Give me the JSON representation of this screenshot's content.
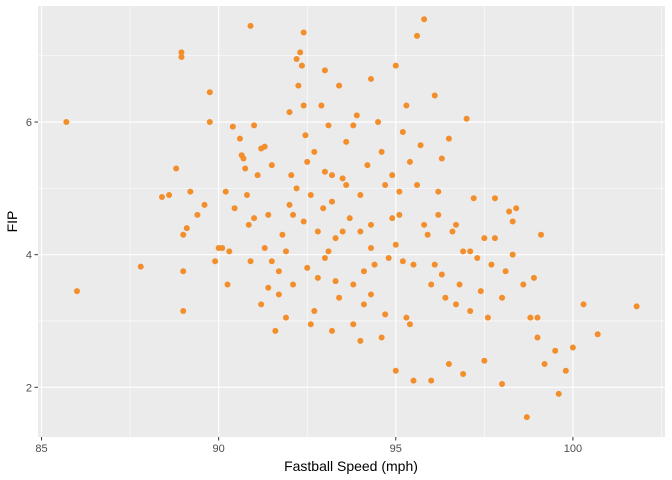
{
  "chart_data": {
    "type": "scatter",
    "xlabel": "Fastball Speed (mph)",
    "ylabel": "FIP",
    "xlim": [
      84.9,
      102.6
    ],
    "ylim": [
      1.25,
      7.75
    ],
    "x_ticks": [
      85,
      90,
      95,
      100
    ],
    "y_ticks": [
      2,
      4,
      6
    ],
    "grid": true,
    "legend": "none",
    "colors": {
      "panel": "#EBEBEB",
      "grid_major": "#FFFFFF",
      "point": "#F28E2B",
      "text": "#4D4D4D",
      "tick": "#333333"
    },
    "points": [
      [
        85.7,
        6.0
      ],
      [
        86.0,
        3.45
      ],
      [
        87.8,
        3.82
      ],
      [
        88.4,
        4.87
      ],
      [
        88.6,
        4.9
      ],
      [
        88.8,
        5.3
      ],
      [
        88.95,
        7.05
      ],
      [
        88.95,
        6.98
      ],
      [
        89.0,
        4.3
      ],
      [
        89.0,
        3.75
      ],
      [
        89.0,
        3.15
      ],
      [
        89.1,
        4.4
      ],
      [
        89.2,
        4.95
      ],
      [
        89.4,
        4.6
      ],
      [
        89.6,
        4.75
      ],
      [
        89.75,
        6.45
      ],
      [
        89.75,
        6.0
      ],
      [
        90.0,
        4.1
      ],
      [
        90.1,
        4.1
      ],
      [
        90.2,
        4.95
      ],
      [
        90.25,
        3.55
      ],
      [
        90.4,
        5.93
      ],
      [
        90.45,
        4.7
      ],
      [
        90.6,
        5.75
      ],
      [
        90.65,
        5.5
      ],
      [
        90.7,
        5.45
      ],
      [
        90.75,
        5.3
      ],
      [
        90.8,
        4.9
      ],
      [
        90.85,
        4.45
      ],
      [
        90.9,
        3.9
      ],
      [
        90.9,
        7.45
      ],
      [
        91.0,
        5.95
      ],
      [
        91.0,
        4.55
      ],
      [
        91.1,
        5.2
      ],
      [
        91.2,
        5.6
      ],
      [
        91.3,
        5.63
      ],
      [
        91.3,
        4.1
      ],
      [
        91.4,
        3.5
      ],
      [
        91.5,
        5.35
      ],
      [
        91.5,
        3.9
      ],
      [
        91.6,
        2.85
      ],
      [
        91.7,
        3.75
      ],
      [
        91.8,
        4.3
      ],
      [
        91.9,
        4.05
      ],
      [
        91.9,
        3.05
      ],
      [
        92.0,
        6.15
      ],
      [
        92.05,
        5.2
      ],
      [
        92.1,
        4.6
      ],
      [
        92.2,
        6.95
      ],
      [
        92.25,
        6.55
      ],
      [
        92.3,
        7.05
      ],
      [
        92.35,
        6.85
      ],
      [
        92.4,
        7.35
      ],
      [
        92.4,
        6.25
      ],
      [
        92.45,
        5.8
      ],
      [
        92.5,
        5.4
      ],
      [
        92.5,
        3.8
      ],
      [
        92.6,
        4.9
      ],
      [
        92.7,
        3.15
      ],
      [
        92.8,
        4.35
      ],
      [
        92.9,
        6.25
      ],
      [
        92.95,
        4.7
      ],
      [
        93.0,
        6.78
      ],
      [
        93.0,
        3.95
      ],
      [
        93.1,
        5.95
      ],
      [
        93.2,
        5.2
      ],
      [
        93.2,
        2.85
      ],
      [
        93.3,
        4.25
      ],
      [
        93.4,
        6.55
      ],
      [
        93.4,
        3.35
      ],
      [
        93.5,
        5.15
      ],
      [
        93.6,
        5.05
      ],
      [
        93.7,
        4.55
      ],
      [
        93.8,
        5.95
      ],
      [
        93.8,
        3.55
      ],
      [
        93.9,
        6.1
      ],
      [
        94.0,
        4.35
      ],
      [
        94.1,
        3.25
      ],
      [
        94.2,
        5.35
      ],
      [
        94.3,
        6.65
      ],
      [
        94.3,
        4.1
      ],
      [
        94.4,
        3.85
      ],
      [
        94.5,
        6.0
      ],
      [
        94.6,
        2.75
      ],
      [
        94.7,
        5.05
      ],
      [
        94.8,
        3.95
      ],
      [
        94.9,
        4.55
      ],
      [
        95.0,
        6.85
      ],
      [
        95.0,
        4.15
      ],
      [
        95.1,
        4.95
      ],
      [
        95.2,
        5.85
      ],
      [
        95.3,
        6.25
      ],
      [
        95.4,
        2.95
      ],
      [
        95.5,
        3.85
      ],
      [
        95.6,
        7.3
      ],
      [
        95.7,
        5.65
      ],
      [
        95.8,
        4.45
      ],
      [
        95.9,
        4.3
      ],
      [
        96.0,
        3.55
      ],
      [
        96.1,
        6.4
      ],
      [
        96.2,
        4.95
      ],
      [
        96.3,
        5.45
      ],
      [
        96.4,
        3.35
      ],
      [
        96.5,
        5.75
      ],
      [
        96.6,
        4.35
      ],
      [
        96.7,
        3.25
      ],
      [
        96.8,
        3.55
      ],
      [
        96.9,
        4.05
      ],
      [
        97.0,
        6.05
      ],
      [
        97.1,
        3.15
      ],
      [
        97.2,
        4.85
      ],
      [
        97.3,
        3.95
      ],
      [
        97.4,
        3.45
      ],
      [
        97.5,
        4.25
      ],
      [
        97.6,
        3.05
      ],
      [
        97.7,
        3.85
      ],
      [
        97.8,
        4.85
      ],
      [
        98.0,
        3.35
      ],
      [
        98.1,
        3.75
      ],
      [
        98.2,
        4.65
      ],
      [
        98.3,
        4.5
      ],
      [
        98.4,
        4.7
      ],
      [
        98.6,
        3.55
      ],
      [
        98.8,
        3.05
      ],
      [
        98.9,
        3.65
      ],
      [
        99.0,
        2.75
      ],
      [
        99.1,
        4.3
      ],
      [
        99.2,
        2.35
      ],
      [
        99.5,
        2.55
      ],
      [
        99.6,
        1.9
      ],
      [
        99.8,
        2.25
      ],
      [
        100.0,
        2.6
      ],
      [
        100.3,
        3.25
      ],
      [
        100.7,
        2.8
      ],
      [
        101.8,
        3.22
      ],
      [
        98.7,
        1.55
      ],
      [
        99.0,
        3.05
      ],
      [
        96.0,
        2.1
      ],
      [
        95.0,
        2.25
      ],
      [
        94.0,
        2.7
      ],
      [
        96.5,
        2.35
      ],
      [
        97.5,
        2.4
      ],
      [
        98.0,
        2.05
      ],
      [
        93.8,
        2.95
      ],
      [
        95.5,
        2.1
      ],
      [
        96.9,
        2.2
      ],
      [
        92.6,
        2.95
      ],
      [
        91.7,
        3.4
      ],
      [
        92.8,
        3.65
      ],
      [
        93.1,
        4.05
      ],
      [
        94.3,
        3.4
      ],
      [
        95.2,
        3.9
      ],
      [
        96.3,
        3.7
      ],
      [
        97.8,
        4.25
      ],
      [
        98.3,
        4.0
      ],
      [
        95.8,
        7.55
      ],
      [
        90.3,
        4.05
      ],
      [
        89.9,
        3.9
      ],
      [
        91.2,
        3.25
      ],
      [
        92.1,
        3.55
      ],
      [
        93.3,
        3.6
      ],
      [
        94.1,
        3.75
      ],
      [
        94.7,
        3.1
      ],
      [
        95.3,
        3.05
      ],
      [
        96.1,
        3.85
      ],
      [
        96.7,
        4.45
      ],
      [
        97.1,
        4.05
      ],
      [
        92.4,
        4.5
      ],
      [
        93.2,
        4.8
      ],
      [
        94.0,
        4.9
      ],
      [
        94.9,
        5.2
      ],
      [
        95.6,
        5.05
      ],
      [
        96.2,
        4.6
      ],
      [
        93.5,
        4.35
      ],
      [
        94.3,
        4.45
      ],
      [
        95.1,
        4.6
      ],
      [
        92.0,
        4.75
      ],
      [
        91.4,
        4.6
      ],
      [
        92.7,
        5.55
      ],
      [
        93.6,
        5.7
      ],
      [
        94.6,
        5.55
      ],
      [
        95.4,
        5.4
      ],
      [
        92.2,
        5.0
      ],
      [
        93.0,
        5.25
      ]
    ]
  }
}
